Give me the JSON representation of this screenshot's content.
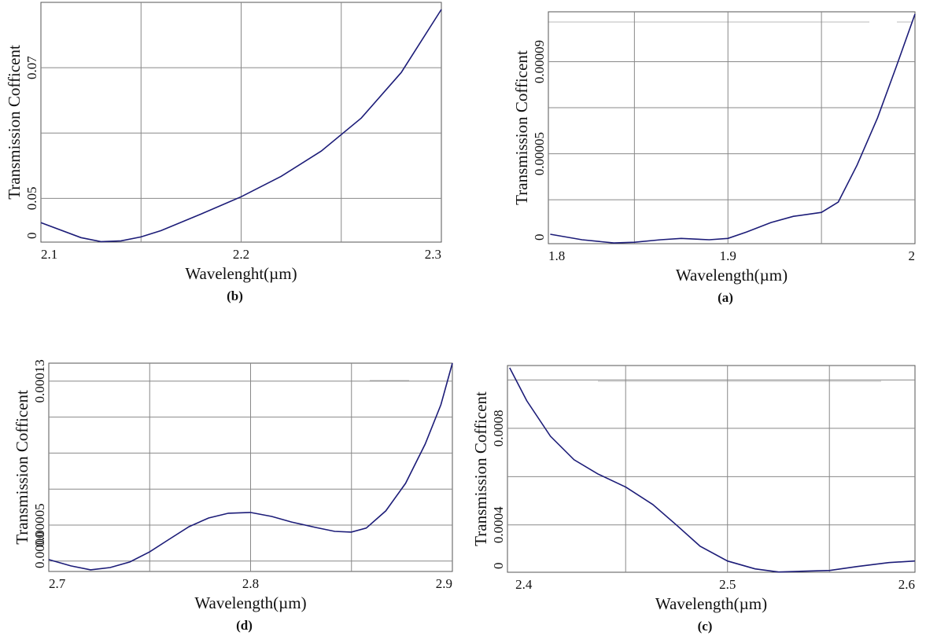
{
  "chart_data": [
    {
      "type": "line",
      "label": "(b)",
      "xlabel": "Wavelenght(µm)",
      "ylabel": "Transmission Cofficent",
      "ymin_label": "0",
      "color": "#1c1c78",
      "x": [
        2.1,
        2.12,
        2.13,
        2.14,
        2.15,
        2.16,
        2.18,
        2.2,
        2.22,
        2.24,
        2.26,
        2.28,
        2.3
      ],
      "values": [
        0.04627,
        0.04398,
        0.04337,
        0.04349,
        0.0441,
        0.04506,
        0.04759,
        0.05024,
        0.05337,
        0.05723,
        0.06229,
        0.06928,
        0.07892
      ],
      "xlim": [
        2.1,
        2.3
      ],
      "ylim": [
        0.0433,
        0.08
      ],
      "xticks": [
        2.1,
        2.2,
        2.3
      ],
      "yticks": [
        0.05,
        0.07
      ],
      "xgrid": [
        2.15,
        2.2,
        2.25
      ],
      "ygrid": [
        0.05,
        0.06,
        0.07
      ],
      "grid": true
    },
    {
      "type": "line",
      "label": "(a)",
      "xlabel": "Wavelength(µm)",
      "ylabel": "Transmission Cofficent",
      "ymin_label": "0",
      "color": "#1c1c78",
      "x": [
        1.805,
        1.822,
        1.839,
        1.85,
        1.864,
        1.875,
        1.89,
        1.9,
        1.91,
        1.923,
        1.935,
        1.95,
        1.959,
        1.969,
        1.98,
        1.99,
        2.0
      ],
      "values": [
        1.5e-05,
        1.26e-05,
        1.12e-05,
        1.15e-05,
        1.26e-05,
        1.32e-05,
        1.26e-05,
        1.32e-05,
        1.6e-05,
        2.01e-05,
        2.28e-05,
        2.45e-05,
        2.9e-05,
        4.5e-05,
        6.56e-05,
        8.78e-05,
        0.0001107
      ],
      "xlim": [
        1.804,
        2.0
      ],
      "ylim": [
        1.09e-05,
        0.0001117
      ],
      "xticks": [
        1.8,
        1.9,
        2
      ],
      "yticks": [
        5e-05,
        9e-05
      ],
      "xgrid": [
        1.85,
        1.9,
        1.95
      ],
      "ygrid": [
        3e-05,
        5e-05,
        7e-05,
        9e-05
      ],
      "grid": true
    },
    {
      "type": "line",
      "label": "(d)",
      "xlabel": "Wavelength(µm)",
      "ylabel": "Transmission Cofficent",
      "ymin_label": "0.0000",
      "color": "#1c1c78",
      "x": [
        2.7,
        2.7109,
        2.7207,
        2.7304,
        2.7402,
        2.75,
        2.7597,
        2.7695,
        2.7792,
        2.789,
        2.7999,
        2.8105,
        2.8203,
        2.832,
        2.8417,
        2.8499,
        2.8573,
        2.867,
        2.8768,
        2.8865,
        2.8943,
        2.9
      ],
      "values": [
        3.08e-05,
        2.73e-05,
        2.51e-05,
        2.64e-05,
        2.95e-05,
        3.51e-05,
        4.21e-05,
        4.91e-05,
        5.39e-05,
        5.66e-05,
        5.7e-05,
        5.48e-05,
        5.17e-05,
        4.87e-05,
        4.65e-05,
        4.61e-05,
        4.83e-05,
        5.79e-05,
        7.32e-05,
        9.5e-05,
        0.0001169,
        0.00014
      ],
      "xlim": [
        2.7,
        2.9
      ],
      "ylim": [
        2.42e-05,
        0.00014
      ],
      "xticks": [
        2.7,
        2.8,
        2.9
      ],
      "yticks": [
        5e-05,
        0.00013
      ],
      "xgrid": [
        2.75,
        2.8,
        2.85
      ],
      "ygrid": [
        3e-05,
        5e-05,
        7e-05,
        9e-05,
        0.00011,
        0.00013
      ],
      "grid": true
    },
    {
      "type": "line",
      "label": "(c)",
      "xlabel": "Wavelength(µm)",
      "ylabel": "Transmission Cofficent",
      "ymin_label": "0",
      "color": "#1c1c78",
      "x": [
        2.3931,
        2.4015,
        2.4131,
        2.4247,
        2.4363,
        2.4502,
        2.4633,
        2.4749,
        2.4865,
        2.5,
        2.5135,
        2.5251,
        2.5367,
        2.5502,
        2.5637,
        2.5792,
        2.5919
      ],
      "values": [
        0.0010504,
        0.0009138,
        0.0007675,
        0.0006699,
        0.0006114,
        0.0005561,
        0.0004846,
        0.0004,
        0.0003122,
        0.0002504,
        0.0002179,
        0.0002049,
        0.0002081,
        0.0002114,
        0.0002276,
        0.0002439,
        0.0002504
      ],
      "xlim": [
        2.392,
        2.592
      ],
      "ylim": [
        0.000204,
        0.00106
      ],
      "xticks": [
        2.4,
        2.5,
        2.6
      ],
      "yticks": [
        0.0004,
        0.0008
      ],
      "xgrid": [
        2.45,
        2.5,
        2.55
      ],
      "ygrid": [
        0.0004,
        0.0006,
        0.0008,
        0.001
      ],
      "grid": true
    }
  ]
}
